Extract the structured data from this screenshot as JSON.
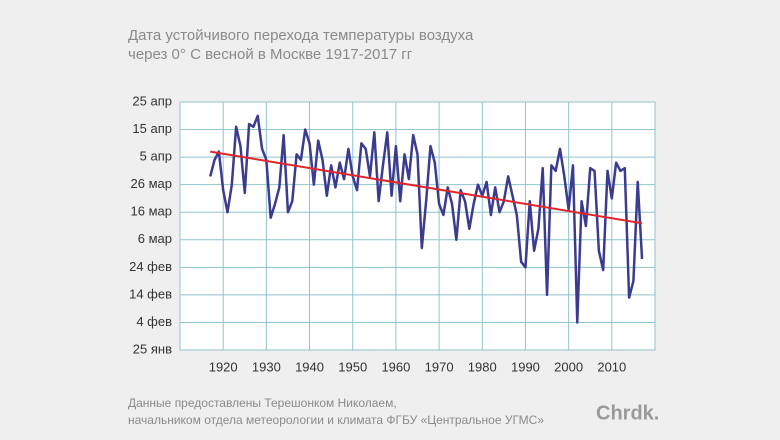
{
  "chart_data": {
    "type": "line",
    "title": [
      "Дата устойчивого перехода температуры воздуха",
      "через 0° С весной в Москве 1917-2017 гг"
    ],
    "source": [
      "Данные предоставлены Терешонком Николаем,",
      "начальником отдела метеорологии и климата ФГБУ «Центральное УГМС»"
    ],
    "logo": "Chrdk.",
    "x": [
      1917,
      1918,
      1919,
      1920,
      1921,
      1922,
      1923,
      1924,
      1925,
      1926,
      1927,
      1928,
      1929,
      1930,
      1931,
      1932,
      1933,
      1934,
      1935,
      1936,
      1937,
      1938,
      1939,
      1940,
      1941,
      1942,
      1943,
      1944,
      1945,
      1946,
      1947,
      1948,
      1949,
      1950,
      1951,
      1952,
      1953,
      1954,
      1955,
      1956,
      1957,
      1958,
      1959,
      1960,
      1961,
      1962,
      1963,
      1964,
      1965,
      1966,
      1967,
      1968,
      1969,
      1970,
      1971,
      1972,
      1973,
      1974,
      1975,
      1976,
      1977,
      1978,
      1979,
      1980,
      1981,
      1982,
      1983,
      1984,
      1985,
      1986,
      1987,
      1988,
      1989,
      1990,
      1991,
      1992,
      1993,
      1994,
      1995,
      1996,
      1997,
      1998,
      1999,
      2000,
      2001,
      2002,
      2003,
      2004,
      2005,
      2006,
      2007,
      2008,
      2009,
      2010,
      2011,
      2012,
      2013,
      2014,
      2015,
      2016,
      2017
    ],
    "series": [
      {
        "color": "#3b3b8f",
        "values": [
          88,
          94,
          97,
          83,
          75,
          85,
          106,
          99,
          82,
          107,
          106,
          110,
          98,
          94,
          73,
          78,
          84,
          103,
          75,
          79,
          96,
          94,
          105,
          100,
          85,
          101,
          94,
          81,
          92,
          84,
          93,
          87,
          98,
          88,
          83,
          100,
          98,
          88,
          104,
          79,
          92,
          104,
          81,
          99,
          79,
          96,
          87,
          103,
          96,
          62,
          79,
          99,
          93,
          78,
          74,
          84,
          78,
          65,
          83,
          79,
          69,
          78,
          85,
          81,
          86,
          74,
          84,
          75,
          79,
          88,
          81,
          74,
          57,
          55,
          79,
          61,
          69,
          91,
          45,
          92,
          90,
          98,
          88,
          76,
          92,
          35,
          79,
          70,
          91,
          90,
          61,
          54,
          90,
          80,
          93,
          90,
          91,
          44,
          50,
          86,
          58
        ]
      }
    ],
    "trend": {
      "x": [
        1917,
        2017
      ],
      "values": [
        97,
        71
      ],
      "color": "#e0262b"
    },
    "xlim": [
      1910,
      2020
    ],
    "xticks": [
      1920,
      1930,
      1940,
      1950,
      1960,
      1970,
      1980,
      1990,
      2000,
      2010
    ],
    "ylim": [
      25,
      115
    ],
    "yticks": [
      {
        "value": 25,
        "label": "25 янв"
      },
      {
        "value": 35,
        "label": "4 фев"
      },
      {
        "value": 45,
        "label": "14 фев"
      },
      {
        "value": 55,
        "label": "24 фев"
      },
      {
        "value": 65,
        "label": "6 мар"
      },
      {
        "value": 75,
        "label": "16 мар"
      },
      {
        "value": 85,
        "label": "26 мар"
      },
      {
        "value": 95,
        "label": "5 апр"
      },
      {
        "value": 105,
        "label": "15 апр"
      },
      {
        "value": 115,
        "label": "25 апр"
      }
    ],
    "grid": true
  }
}
